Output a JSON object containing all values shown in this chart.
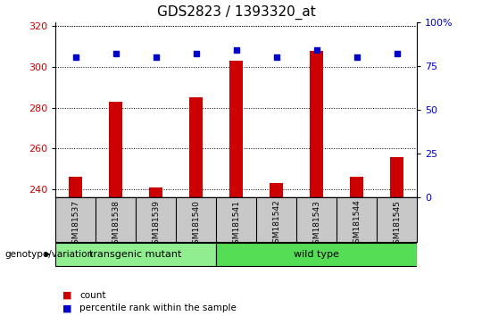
{
  "title": "GDS2823 / 1393320_at",
  "samples": [
    "GSM181537",
    "GSM181538",
    "GSM181539",
    "GSM181540",
    "GSM181541",
    "GSM181542",
    "GSM181543",
    "GSM181544",
    "GSM181545"
  ],
  "counts": [
    246,
    283,
    241,
    285,
    303,
    243,
    308,
    246,
    256
  ],
  "percentile_ranks": [
    80,
    82,
    80,
    82,
    84,
    80,
    84,
    80,
    82
  ],
  "ylim_left": [
    236,
    322
  ],
  "ylim_right": [
    0,
    100
  ],
  "yticks_left": [
    240,
    260,
    280,
    300,
    320
  ],
  "yticks_right": [
    0,
    25,
    50,
    75,
    100
  ],
  "groups": [
    {
      "label": "transgenic mutant",
      "start": 0,
      "end": 4,
      "color": "#90EE90"
    },
    {
      "label": "wild type",
      "start": 4,
      "end": 9,
      "color": "#55DD55"
    }
  ],
  "bar_color": "#CC0000",
  "marker_color": "#0000CC",
  "grid_color": "#000000",
  "background_color": "#FFFFFF",
  "tick_label_area_color": "#C8C8C8",
  "genotype_label": "genotype/variation",
  "legend_count_label": "count",
  "legend_percentile_label": "percentile rank within the sample",
  "title_fontsize": 11,
  "axis_fontsize": 8,
  "tick_fontsize": 8,
  "bar_width": 0.35
}
